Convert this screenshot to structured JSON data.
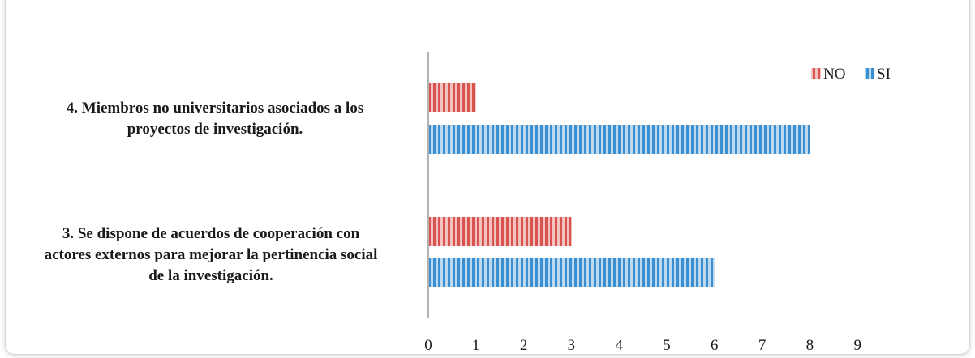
{
  "chart_data": {
    "type": "bar",
    "orientation": "horizontal",
    "title": "",
    "xlabel": "",
    "ylabel": "",
    "categories": [
      "4. Miembros no universitarios asociados a los proyectos de investigación.",
      "3. Se dispone de acuerdos de cooperación  con actores externos para mejorar la pertinencia social de la investigación."
    ],
    "category_lines": [
      [
        "4. Miembros no universitarios asociados a los",
        "proyectos de investigación."
      ],
      [
        "3. Se dispone de acuerdos de cooperación  con",
        "actores externos para mejorar la pertinencia social",
        "de la investigación."
      ]
    ],
    "series": [
      {
        "name": "NO",
        "values": [
          1,
          3
        ],
        "color": "#d9534f"
      },
      {
        "name": "SI",
        "values": [
          8,
          6
        ],
        "color": "#3a8fd0"
      }
    ],
    "xlim": [
      0,
      9
    ],
    "xticks": [
      "0",
      "1",
      "2",
      "3",
      "4",
      "5",
      "6",
      "7",
      "8",
      "9"
    ],
    "grid": false,
    "legend": {
      "position": "top-right",
      "entries": [
        "NO",
        "SI"
      ]
    },
    "bar_pattern": "vertical-stripes"
  }
}
